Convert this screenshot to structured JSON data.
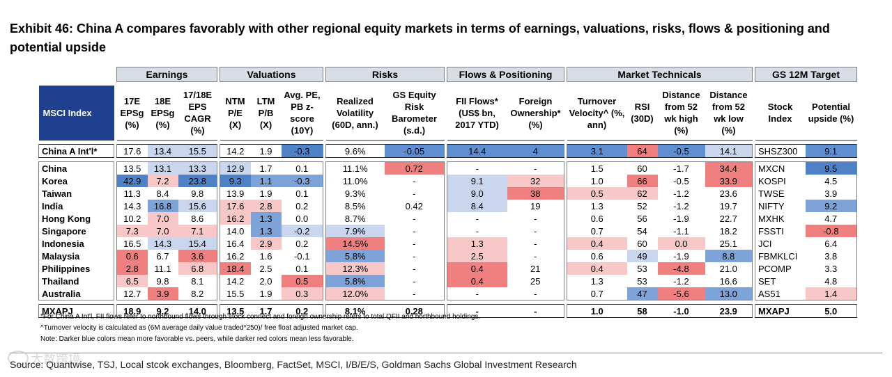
{
  "title": "Exhibit 46: China A compares favorably with other regional equity markets in terms of earnings, valuations, risks, flows & positioning and potential upside",
  "groups": [
    "Earnings",
    "Valuations",
    "Risks",
    "Flows & Positioning",
    "Market Technicals",
    "GS 12M Target"
  ],
  "index_header": "MSCI Index",
  "columns": [
    "17E EPSg (%)",
    "18E EPSg (%)",
    "17/18E EPS CAGR (%)",
    "NTM P/E (X)",
    "LTM P/B (X)",
    "Avg. PE, PB z-score (10Y)",
    "Realized Volatility (60D, ann.)",
    "GS Equity Risk Barometer (s.d.)",
    "FII Flows* (US$ bn, 2017 YTD)",
    "Foreign Ownership* (%)",
    "Turnover Velocity^ (%, ann)",
    "RSI (30D)",
    "Distance from 52 wk high (%)",
    "Distance from 52 wk low (%)",
    "Stock Index",
    "Potential upside (%)"
  ],
  "china_a": {
    "label": "China A Int'l*",
    "cells": [
      "17.6",
      "13.4",
      "15.5",
      "14.2",
      "1.9",
      "-0.3",
      "9.6%",
      "-0.05",
      "14.4",
      "4",
      "3.1",
      "64",
      "-0.5",
      "14.1",
      "SHSZ300",
      "9.1"
    ]
  },
  "rows": [
    {
      "label": "China",
      "cells": [
        "13.5",
        "13.1",
        "13.3",
        "12.9",
        "1.7",
        "0.1",
        "11.1%",
        "0.72",
        "-",
        "-",
        "1.5",
        "60",
        "-1.7",
        "34.4",
        "MXCN",
        "9.5"
      ]
    },
    {
      "label": "Korea",
      "cells": [
        "42.9",
        "7.2",
        "23.8",
        "9.3",
        "1.1",
        "-0.3",
        "11.0%",
        "-",
        "9.1",
        "32",
        "1.0",
        "66",
        "-0.5",
        "33.9",
        "KOSPI",
        "4.5"
      ]
    },
    {
      "label": "Taiwan",
      "cells": [
        "11.3",
        "8.4",
        "9.8",
        "13.9",
        "1.9",
        "0.1",
        "9.3%",
        "-",
        "9.0",
        "38",
        "0.5",
        "62",
        "-1.2",
        "23.6",
        "TWSE",
        "3.9"
      ]
    },
    {
      "label": "India",
      "cells": [
        "14.3",
        "16.8",
        "15.6",
        "17.6",
        "2.8",
        "0.2",
        "8.5%",
        "0.42",
        "8.4",
        "19",
        "1.3",
        "52",
        "-1.2",
        "19.7",
        "NIFTY",
        "9.2"
      ]
    },
    {
      "label": "Hong Kong",
      "cells": [
        "10.2",
        "7.0",
        "8.6",
        "16.2",
        "1.3",
        "0.0",
        "8.7%",
        "-",
        "-",
        "-",
        "0.6",
        "56",
        "-1.9",
        "22.7",
        "MXHK",
        "4.7"
      ]
    },
    {
      "label": "Singapore",
      "cells": [
        "7.3",
        "7.0",
        "7.1",
        "14.0",
        "1.3",
        "-0.2",
        "7.9%",
        "-",
        "-",
        "-",
        "0.7",
        "54",
        "-1.1",
        "18.2",
        "FSSTI",
        "-0.8"
      ]
    },
    {
      "label": "Indonesia",
      "cells": [
        "16.5",
        "14.3",
        "15.4",
        "16.4",
        "2.9",
        "0.2",
        "14.5%",
        "-",
        "1.3",
        "-",
        "0.4",
        "60",
        "0.0",
        "25.1",
        "JCI",
        "6.4"
      ]
    },
    {
      "label": "Malaysia",
      "cells": [
        "0.6",
        "6.7",
        "3.6",
        "16.2",
        "1.6",
        "-0.1",
        "5.8%",
        "-",
        "2.5",
        "-",
        "0.6",
        "49",
        "-1.9",
        "8.8",
        "FBMKLCI",
        "3.8"
      ]
    },
    {
      "label": "Philippines",
      "cells": [
        "2.8",
        "11.1",
        "6.8",
        "18.4",
        "2.5",
        "0.1",
        "12.3%",
        "-",
        "0.4",
        "21",
        "0.4",
        "53",
        "-4.8",
        "21.0",
        "PCOMP",
        "3.3"
      ]
    },
    {
      "label": "Thailand",
      "cells": [
        "6.5",
        "9.8",
        "8.1",
        "14.2",
        "2.0",
        "0.5",
        "5.8%",
        "-",
        "0.4",
        "25",
        "1.3",
        "53",
        "-1.2",
        "16.6",
        "SET",
        "4.8"
      ]
    },
    {
      "label": "Australia",
      "cells": [
        "12.7",
        "3.9",
        "8.2",
        "15.5",
        "1.9",
        "0.3",
        "12.0%",
        "-",
        "-",
        "-",
        "0.7",
        "47",
        "-5.6",
        "13.0",
        "AS51",
        "1.4"
      ]
    }
  ],
  "mxapj": {
    "label": "MXAPJ",
    "cells": [
      "18.9",
      "9.2",
      "14.0",
      "13.5",
      "1.7",
      "0.2",
      "8.1%",
      "0.28",
      "-",
      "-",
      "1.0",
      "58",
      "-1.0",
      "23.9",
      "MXAPJ",
      "5.0"
    ]
  },
  "colors": {
    "china_a": [
      "#ffffff",
      "#c9d6ee",
      "#c9d6ee",
      "#ffffff",
      "#ffffff",
      "#4f81c7",
      "#ffffff",
      "#5f8fd0",
      "#5f8fd0",
      "#5f8fd0",
      "#5f8fd0",
      "#f08080",
      "#5f8fd0",
      "#c9d6ee",
      "#ffffff",
      "#5f8fd0"
    ],
    "rows": [
      [
        "#ffffff",
        "#c9d6ee",
        "#c9d6ee",
        "#c9d6ee",
        "#ffffff",
        "#ffffff",
        "#ffffff",
        "#f08080",
        "#ffffff",
        "#ffffff",
        "#ffffff",
        "#ffffff",
        "#ffffff",
        "#f08080",
        "#ffffff",
        "#4f81c7"
      ],
      [
        "#4f81c7",
        "#f8c8c8",
        "#4f81c7",
        "#4f81c7",
        "#7ea3d8",
        "#7ea3d8",
        "#ffffff",
        "#ffffff",
        "#c9d6ee",
        "#f8c8c8",
        "#ffffff",
        "#f08080",
        "#ffffff",
        "#f08080",
        "#ffffff",
        "#ffffff"
      ],
      [
        "#ffffff",
        "#ffffff",
        "#ffffff",
        "#ffffff",
        "#ffffff",
        "#ffffff",
        "#ffffff",
        "#ffffff",
        "#c9d6ee",
        "#f08080",
        "#f8c8c8",
        "#f8c8c8",
        "#ffffff",
        "#ffffff",
        "#ffffff",
        "#ffffff"
      ],
      [
        "#ffffff",
        "#7ea3d8",
        "#c9d6ee",
        "#f8c8c8",
        "#f8c8c8",
        "#ffffff",
        "#ffffff",
        "#ffffff",
        "#c9d6ee",
        "#ffffff",
        "#ffffff",
        "#ffffff",
        "#ffffff",
        "#ffffff",
        "#ffffff",
        "#7ea3d8"
      ],
      [
        "#ffffff",
        "#f8c8c8",
        "#ffffff",
        "#f8c8c8",
        "#7ea3d8",
        "#ffffff",
        "#ffffff",
        "#ffffff",
        "#ffffff",
        "#ffffff",
        "#ffffff",
        "#ffffff",
        "#ffffff",
        "#ffffff",
        "#ffffff",
        "#ffffff"
      ],
      [
        "#f8c8c8",
        "#f8c8c8",
        "#f8c8c8",
        "#ffffff",
        "#7ea3d8",
        "#c9d6ee",
        "#c9d6ee",
        "#ffffff",
        "#ffffff",
        "#ffffff",
        "#ffffff",
        "#ffffff",
        "#ffffff",
        "#ffffff",
        "#ffffff",
        "#f08080"
      ],
      [
        "#ffffff",
        "#c9d6ee",
        "#c9d6ee",
        "#ffffff",
        "#f8c8c8",
        "#ffffff",
        "#f08080",
        "#ffffff",
        "#f8c8c8",
        "#ffffff",
        "#f8c8c8",
        "#ffffff",
        "#f8c8c8",
        "#ffffff",
        "#ffffff",
        "#ffffff"
      ],
      [
        "#f08080",
        "#ffffff",
        "#f08080",
        "#ffffff",
        "#ffffff",
        "#ffffff",
        "#7ea3d8",
        "#ffffff",
        "#f8c8c8",
        "#ffffff",
        "#ffffff",
        "#c9d6ee",
        "#ffffff",
        "#7ea3d8",
        "#ffffff",
        "#ffffff"
      ],
      [
        "#f08080",
        "#ffffff",
        "#f8c8c8",
        "#f08080",
        "#ffffff",
        "#ffffff",
        "#f8c8c8",
        "#ffffff",
        "#f08080",
        "#ffffff",
        "#f8c8c8",
        "#ffffff",
        "#f08080",
        "#ffffff",
        "#ffffff",
        "#ffffff"
      ],
      [
        "#f8c8c8",
        "#ffffff",
        "#ffffff",
        "#ffffff",
        "#ffffff",
        "#f08080",
        "#7ea3d8",
        "#ffffff",
        "#f08080",
        "#ffffff",
        "#ffffff",
        "#ffffff",
        "#ffffff",
        "#ffffff",
        "#ffffff",
        "#ffffff"
      ],
      [
        "#ffffff",
        "#f08080",
        "#ffffff",
        "#ffffff",
        "#ffffff",
        "#f8c8c8",
        "#f8c8c8",
        "#ffffff",
        "#ffffff",
        "#ffffff",
        "#ffffff",
        "#7ea3d8",
        "#f08080",
        "#7ea3d8",
        "#ffffff",
        "#f8c8c8"
      ]
    ]
  },
  "footnotes": [
    "*For China A Int'l, FII flows refer to northbound flows through stock connect and foreign ownership refers to total QFII and northbound holdings.",
    "^Turnover velocity is calculated as (6M average daily value traded*250)/ free float adjusted market cap.",
    "Note: Darker blue colors mean more favorable vs. peers, while darker red colors mean less favorable."
  ],
  "source": "Source: Quantwise, TSJ, Local stcok exchanges, Bloomberg, FactSet, MSCI, I/B/E/S, Goldman Sachs Global Investment Research",
  "watermark": "大数跨境"
}
